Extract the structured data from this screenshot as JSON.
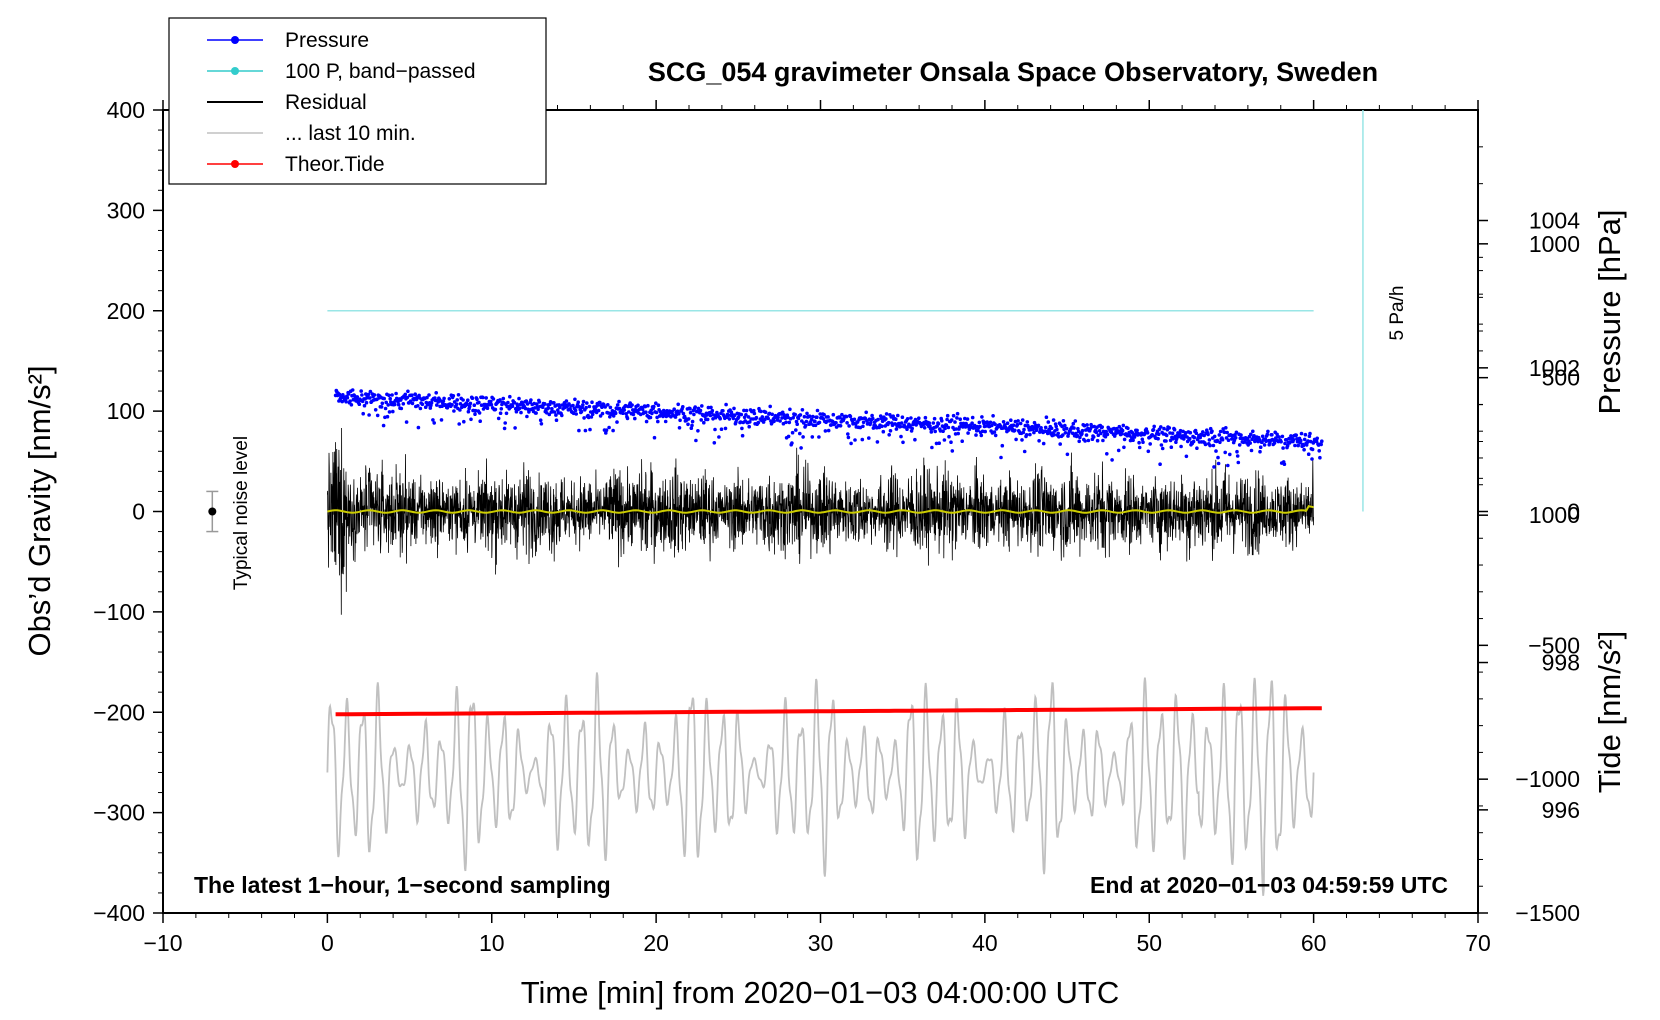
{
  "chart_data": {
    "type": "line",
    "title": "SCG_054 gravimeter Onsala Space Observatory, Sweden",
    "xlabel": "Time [min] from 2020−01−03 04:00:00 UTC",
    "ylabel_left": "Obs’d Gravity [nm/s²]",
    "ylabel_pressure": "Pressure [hPa]",
    "ylabel_tide": "Tide [nm/s²]",
    "xlim": [
      -10,
      70
    ],
    "ylim": [
      -400,
      400
    ],
    "pressure_range_hPa": [
      994.6,
      1005.5
    ],
    "tide_range": [
      -1500,
      1500
    ],
    "x_ticks": [
      "−10",
      "0",
      "10",
      "20",
      "30",
      "40",
      "50",
      "60",
      "70"
    ],
    "x_tick_values": [
      -10,
      0,
      10,
      20,
      30,
      40,
      50,
      60,
      70
    ],
    "y_ticks": [
      "400",
      "300",
      "200",
      "100",
      "0",
      "−100",
      "−200",
      "−300",
      "−400"
    ],
    "y_tick_values": [
      400,
      300,
      200,
      100,
      0,
      -100,
      -200,
      -300,
      -400
    ],
    "pressure_ticks": [
      "1004",
      "1002",
      "1000",
      "998",
      "996"
    ],
    "pressure_tick_values": [
      1004,
      1002,
      1000,
      998,
      996
    ],
    "tide_ticks": [
      "1000",
      "500",
      "0",
      "−500",
      "−1000",
      "−1500"
    ],
    "tide_tick_values": [
      1000,
      500,
      0,
      -500,
      -1000,
      -1500
    ],
    "legend": [
      {
        "label": "Pressure",
        "color": "#0000ff",
        "marker": true
      },
      {
        "label": "100 P, band−passed",
        "color": "#33cccc",
        "marker": true
      },
      {
        "label": "Residual",
        "color": "#000000",
        "marker": false
      },
      {
        "label": "... last 10 min.",
        "color": "#c0c0c0",
        "marker": false
      },
      {
        "label": "Theor.Tide",
        "color": "#ff0000",
        "marker": true
      }
    ],
    "series": [
      {
        "name": "Pressure",
        "color": "#0000ff",
        "x_range": [
          0.5,
          60.5
        ],
        "start_hPa": 1001.6,
        "end_hPa": 1001.0,
        "scatter_hPa": 0.35
      },
      {
        "name": "100 P, band−passed",
        "color": "#99e6e6",
        "x_range": [
          0,
          60
        ],
        "value": 200
      },
      {
        "name": "Residual",
        "color": "#000000",
        "x_range": [
          0,
          60
        ],
        "amplitude_typical": 60,
        "amplitude_max": 170
      },
      {
        "name": "Residual smoothed",
        "color": "#cccc00",
        "x_range": [
          0,
          60
        ],
        "value": 0
      },
      {
        "name": "... last 10 min.",
        "color": "#c0c0c0",
        "x_range": [
          0,
          60
        ],
        "center": -260,
        "amplitude_typical": 65,
        "amplitude_max": 120
      },
      {
        "name": "Theor.Tide",
        "color": "#ff0000",
        "x_range": [
          0.5,
          60.5
        ],
        "start": -202,
        "end": -196
      }
    ],
    "noise_level": {
      "label": "Typical noise level",
      "x": -7,
      "y": 0,
      "error": 20
    },
    "scale_bar": {
      "label": "5 Pa/h",
      "x": 63,
      "y_top": 400,
      "y_bottom": 0
    },
    "annotations": {
      "left": "The latest 1−hour, 1−second sampling",
      "right": "End at 2020−01−03 04:59:59 UTC"
    }
  }
}
